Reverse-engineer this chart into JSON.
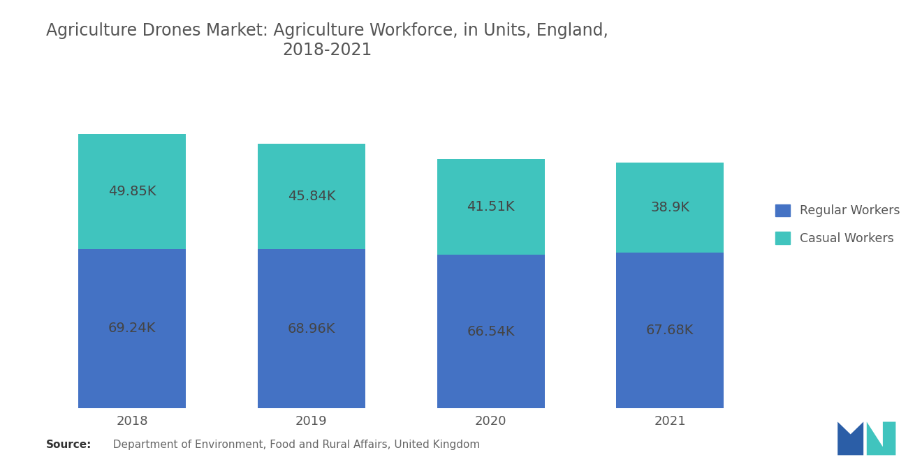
{
  "title": "Agriculture Drones Market: Agriculture Workforce, in Units, England,\n2018-2021",
  "years": [
    "2018",
    "2019",
    "2020",
    "2021"
  ],
  "regular_workers": [
    69.24,
    68.96,
    66.54,
    67.68
  ],
  "casual_workers": [
    49.85,
    45.84,
    41.51,
    38.9
  ],
  "regular_labels": [
    "69.24K",
    "68.96K",
    "66.54K",
    "67.68K"
  ],
  "casual_labels": [
    "49.85K",
    "45.84K",
    "41.51K",
    "38.9K"
  ],
  "regular_color": "#4472C4",
  "casual_color": "#40C4BE",
  "bar_width": 0.6,
  "background_color": "#FFFFFF",
  "title_fontsize": 17,
  "label_fontsize": 14,
  "tick_fontsize": 13,
  "legend_labels": [
    "Regular Workers",
    "Casual Workers"
  ],
  "source_bold": "Source:",
  "source_rest": "  Department of Environment, Food and Rural Affairs, United Kingdom",
  "ylim": [
    0,
    145
  ]
}
